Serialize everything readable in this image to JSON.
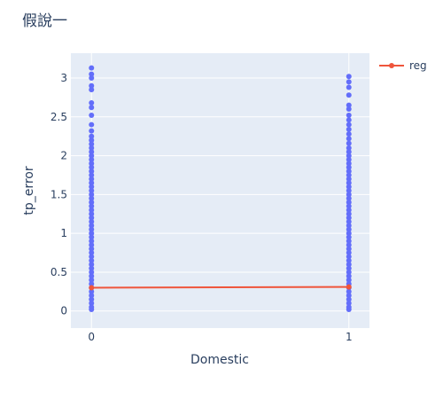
{
  "chart_data": {
    "type": "scatter",
    "title": "假說一",
    "xlabel": "Domestic",
    "ylabel": "tp_error",
    "xlim": [
      -0.08,
      1.08
    ],
    "ylim": [
      -0.22,
      3.32
    ],
    "x_ticks": [
      0,
      1
    ],
    "x_tick_labels": [
      "0",
      "1"
    ],
    "y_ticks": [
      0,
      0.5,
      1,
      1.5,
      2,
      2.5,
      3
    ],
    "y_tick_labels": [
      "0",
      "0.5",
      "1",
      "1.5",
      "2",
      "2.5",
      "3"
    ],
    "grid": true,
    "legend_position": "top-right",
    "series": [
      {
        "name": "",
        "mode": "markers",
        "color": "#636efa",
        "points": [
          {
            "x": 0,
            "y": 3.13
          },
          {
            "x": 0,
            "y": 3.05
          },
          {
            "x": 0,
            "y": 3.0
          },
          {
            "x": 0,
            "y": 2.9
          },
          {
            "x": 0,
            "y": 2.85
          },
          {
            "x": 0,
            "y": 2.68
          },
          {
            "x": 0,
            "y": 2.62
          },
          {
            "x": 0,
            "y": 2.52
          },
          {
            "x": 0,
            "y": 2.4
          },
          {
            "x": 0,
            "y": 2.32
          },
          {
            "x": 0,
            "y": 2.25
          },
          {
            "x": 0,
            "y": 2.2
          },
          {
            "x": 0,
            "y": 2.15
          },
          {
            "x": 0,
            "y": 2.1
          },
          {
            "x": 0,
            "y": 2.05
          },
          {
            "x": 0,
            "y": 2.0
          },
          {
            "x": 0,
            "y": 1.95
          },
          {
            "x": 0,
            "y": 1.9
          },
          {
            "x": 0,
            "y": 1.85
          },
          {
            "x": 0,
            "y": 1.8
          },
          {
            "x": 0,
            "y": 1.75
          },
          {
            "x": 0,
            "y": 1.7
          },
          {
            "x": 0,
            "y": 1.65
          },
          {
            "x": 0,
            "y": 1.6
          },
          {
            "x": 0,
            "y": 1.55
          },
          {
            "x": 0,
            "y": 1.5
          },
          {
            "x": 0,
            "y": 1.45
          },
          {
            "x": 0,
            "y": 1.4
          },
          {
            "x": 0,
            "y": 1.35
          },
          {
            "x": 0,
            "y": 1.3
          },
          {
            "x": 0,
            "y": 1.25
          },
          {
            "x": 0,
            "y": 1.2
          },
          {
            "x": 0,
            "y": 1.15
          },
          {
            "x": 0,
            "y": 1.1
          },
          {
            "x": 0,
            "y": 1.05
          },
          {
            "x": 0,
            "y": 1.0
          },
          {
            "x": 0,
            "y": 0.95
          },
          {
            "x": 0,
            "y": 0.9
          },
          {
            "x": 0,
            "y": 0.85
          },
          {
            "x": 0,
            "y": 0.8
          },
          {
            "x": 0,
            "y": 0.75
          },
          {
            "x": 0,
            "y": 0.7
          },
          {
            "x": 0,
            "y": 0.65
          },
          {
            "x": 0,
            "y": 0.6
          },
          {
            "x": 0,
            "y": 0.55
          },
          {
            "x": 0,
            "y": 0.5
          },
          {
            "x": 0,
            "y": 0.45
          },
          {
            "x": 0,
            "y": 0.4
          },
          {
            "x": 0,
            "y": 0.35
          },
          {
            "x": 0,
            "y": 0.3
          },
          {
            "x": 0,
            "y": 0.25
          },
          {
            "x": 0,
            "y": 0.2
          },
          {
            "x": 0,
            "y": 0.15
          },
          {
            "x": 0,
            "y": 0.1
          },
          {
            "x": 0,
            "y": 0.05
          },
          {
            "x": 0,
            "y": 0.02
          },
          {
            "x": 1,
            "y": 3.02
          },
          {
            "x": 1,
            "y": 2.95
          },
          {
            "x": 1,
            "y": 2.88
          },
          {
            "x": 1,
            "y": 2.78
          },
          {
            "x": 1,
            "y": 2.65
          },
          {
            "x": 1,
            "y": 2.6
          },
          {
            "x": 1,
            "y": 2.52
          },
          {
            "x": 1,
            "y": 2.46
          },
          {
            "x": 1,
            "y": 2.4
          },
          {
            "x": 1,
            "y": 2.34
          },
          {
            "x": 1,
            "y": 2.28
          },
          {
            "x": 1,
            "y": 2.22
          },
          {
            "x": 1,
            "y": 2.16
          },
          {
            "x": 1,
            "y": 2.1
          },
          {
            "x": 1,
            "y": 2.05
          },
          {
            "x": 1,
            "y": 2.0
          },
          {
            "x": 1,
            "y": 1.95
          },
          {
            "x": 1,
            "y": 1.9
          },
          {
            "x": 1,
            "y": 1.85
          },
          {
            "x": 1,
            "y": 1.8
          },
          {
            "x": 1,
            "y": 1.75
          },
          {
            "x": 1,
            "y": 1.7
          },
          {
            "x": 1,
            "y": 1.65
          },
          {
            "x": 1,
            "y": 1.6
          },
          {
            "x": 1,
            "y": 1.55
          },
          {
            "x": 1,
            "y": 1.5
          },
          {
            "x": 1,
            "y": 1.45
          },
          {
            "x": 1,
            "y": 1.4
          },
          {
            "x": 1,
            "y": 1.35
          },
          {
            "x": 1,
            "y": 1.3
          },
          {
            "x": 1,
            "y": 1.25
          },
          {
            "x": 1,
            "y": 1.2
          },
          {
            "x": 1,
            "y": 1.15
          },
          {
            "x": 1,
            "y": 1.1
          },
          {
            "x": 1,
            "y": 1.05
          },
          {
            "x": 1,
            "y": 1.0
          },
          {
            "x": 1,
            "y": 0.95
          },
          {
            "x": 1,
            "y": 0.9
          },
          {
            "x": 1,
            "y": 0.85
          },
          {
            "x": 1,
            "y": 0.8
          },
          {
            "x": 1,
            "y": 0.75
          },
          {
            "x": 1,
            "y": 0.7
          },
          {
            "x": 1,
            "y": 0.65
          },
          {
            "x": 1,
            "y": 0.6
          },
          {
            "x": 1,
            "y": 0.55
          },
          {
            "x": 1,
            "y": 0.5
          },
          {
            "x": 1,
            "y": 0.45
          },
          {
            "x": 1,
            "y": 0.4
          },
          {
            "x": 1,
            "y": 0.35
          },
          {
            "x": 1,
            "y": 0.3
          },
          {
            "x": 1,
            "y": 0.25
          },
          {
            "x": 1,
            "y": 0.2
          },
          {
            "x": 1,
            "y": 0.15
          },
          {
            "x": 1,
            "y": 0.1
          },
          {
            "x": 1,
            "y": 0.05
          },
          {
            "x": 1,
            "y": 0.02
          }
        ]
      },
      {
        "name": "reg",
        "mode": "lines+markers",
        "color": "#ef553b",
        "points": [
          {
            "x": 0,
            "y": 0.3
          },
          {
            "x": 1,
            "y": 0.31
          }
        ]
      }
    ]
  }
}
